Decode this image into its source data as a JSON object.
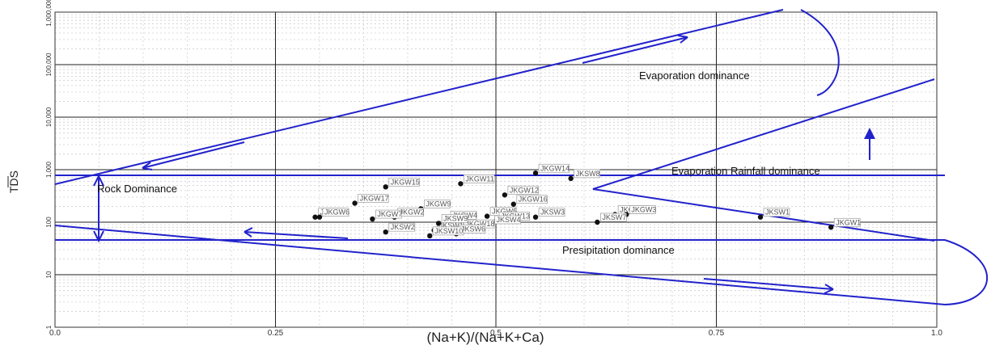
{
  "chart_data": {
    "type": "scatter",
    "xlabel": "(Na+K)/(Na+K+Ca)",
    "ylabel": "TDS",
    "xlim": [
      0,
      1
    ],
    "ylim": [
      1,
      1000000
    ],
    "y_scale": "log",
    "grid": true,
    "x_ticks": [
      "0.0",
      "0.25",
      "0.5",
      "0.75",
      "1.0"
    ],
    "y_ticks": [
      "1",
      "10",
      "100",
      "1,000",
      "10,000",
      "100,000",
      "1,000,000"
    ],
    "annotations": {
      "evaporation": "Evaporation dominance",
      "evap_rainfall": "Evaporation Rainfall dominance",
      "rock": "Rock Dominance",
      "precipitation": "Presipitation dominance"
    },
    "points": [
      {
        "label": "JKGW14",
        "x": 0.545,
        "y": 860
      },
      {
        "label": "JKSW8",
        "x": 0.585,
        "y": 680
      },
      {
        "label": "JKGW15",
        "x": 0.375,
        "y": 470
      },
      {
        "label": "JKGW11",
        "x": 0.46,
        "y": 540
      },
      {
        "label": "JKGW12",
        "x": 0.51,
        "y": 330
      },
      {
        "label": "JKGW16",
        "x": 0.52,
        "y": 220
      },
      {
        "label": "JKGW17",
        "x": 0.34,
        "y": 230
      },
      {
        "label": "JKGW9",
        "x": 0.415,
        "y": 180
      },
      {
        "label": "JKGW8",
        "x": 0.295,
        "y": 125
      },
      {
        "label": "JKGW6",
        "x": 0.3,
        "y": 125
      },
      {
        "label": "JKGW2",
        "x": 0.385,
        "y": 125
      },
      {
        "label": "JKGW7",
        "x": 0.36,
        "y": 115
      },
      {
        "label": "JKSW2",
        "x": 0.375,
        "y": 65
      },
      {
        "label": "JKSW1",
        "x": 0.43,
        "y": 70
      },
      {
        "label": "JKGW5",
        "x": 0.49,
        "y": 130
      },
      {
        "label": "JKGW4",
        "x": 0.445,
        "y": 110
      },
      {
        "label": "JKGW13",
        "x": 0.5,
        "y": 105
      },
      {
        "label": "JKSW4",
        "x": 0.495,
        "y": 90
      },
      {
        "label": "JKSW3",
        "x": 0.545,
        "y": 125
      },
      {
        "label": "JKGW18",
        "x": 0.46,
        "y": 75
      },
      {
        "label": "JKSW9",
        "x": 0.435,
        "y": 95
      },
      {
        "label": "JKSW6",
        "x": 0.455,
        "y": 60
      },
      {
        "label": "JKSW10",
        "x": 0.425,
        "y": 55
      },
      {
        "label": "JKGW10",
        "x": 0.635,
        "y": 140
      },
      {
        "label": "JKGW3",
        "x": 0.648,
        "y": 140
      },
      {
        "label": "JKSW7",
        "x": 0.615,
        "y": 100
      },
      {
        "label": "JKSW1",
        "x": 0.8,
        "y": 125
      },
      {
        "label": "JKGW1",
        "x": 0.88,
        "y": 80
      }
    ]
  }
}
